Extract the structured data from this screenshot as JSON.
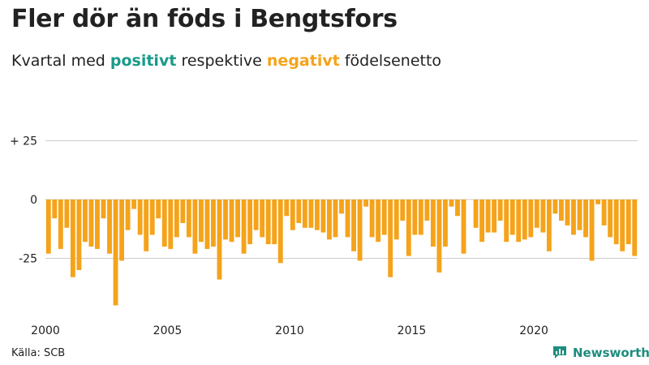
{
  "header": {
    "title": "Fler dör än föds i Bengtsfors",
    "subtitle_prefix": "Kvartal med ",
    "subtitle_positive": "positivt",
    "subtitle_middle": " respektive ",
    "subtitle_negative": "negativt",
    "subtitle_suffix": " födelsenetto"
  },
  "footer": {
    "source": "Källa: SCB",
    "brand": "Newsworthy"
  },
  "colors": {
    "negative": "#f5a31a",
    "positive": "#1a9a8a",
    "brand": "#1e8c7e",
    "gridline": "#cccccc"
  },
  "icons": {
    "brand_logo": "bar-chart-logo-icon"
  },
  "chart_data": {
    "type": "bar",
    "title": "Fler dör än föds i Bengtsfors",
    "subtitle": "Kvartal med positivt respektive negativt födelsenetto",
    "xlabel": "",
    "ylabel": "",
    "ylim": [
      -45,
      30
    ],
    "yticks": [
      {
        "value": 25,
        "label": "+ 25"
      },
      {
        "value": 0,
        "label": "0"
      },
      {
        "value": -25,
        "label": "-25"
      }
    ],
    "xticks": [
      {
        "year": 2000,
        "label": "2000"
      },
      {
        "year": 2005,
        "label": "2005"
      },
      {
        "year": 2010,
        "label": "2010"
      },
      {
        "year": 2015,
        "label": "2015"
      },
      {
        "year": 2020,
        "label": "2020"
      }
    ],
    "start": "2000 Q1",
    "grid": true,
    "legend": "none",
    "values": [
      -23,
      -8,
      -21,
      -12,
      -33,
      -30,
      -18,
      -20,
      -21,
      -8,
      -23,
      -45,
      -26,
      -13,
      -4,
      -15,
      -22,
      -15,
      -8,
      -20,
      -21,
      -16,
      -10,
      -16,
      -23,
      -18,
      -21,
      -20,
      -34,
      -17,
      -18,
      -16,
      -23,
      -19,
      -13,
      -16,
      -19,
      -19,
      -27,
      -7,
      -13,
      -10,
      -12,
      -12,
      -13,
      -14,
      -17,
      -16,
      -6,
      -16,
      -22,
      -26,
      -3,
      -16,
      -18,
      -15,
      -33,
      -17,
      -9,
      -24,
      -15,
      -15,
      -9,
      -20,
      -31,
      -20,
      -3,
      -7,
      -23,
      0,
      -12,
      -18,
      -14,
      -14,
      -9,
      -18,
      -15,
      -18,
      -17,
      -16,
      -12,
      -14,
      -22,
      -6,
      -9,
      -11,
      -15,
      -13,
      -16,
      -26,
      -2,
      -11,
      -16,
      -19,
      -22,
      -19,
      -24
    ]
  }
}
